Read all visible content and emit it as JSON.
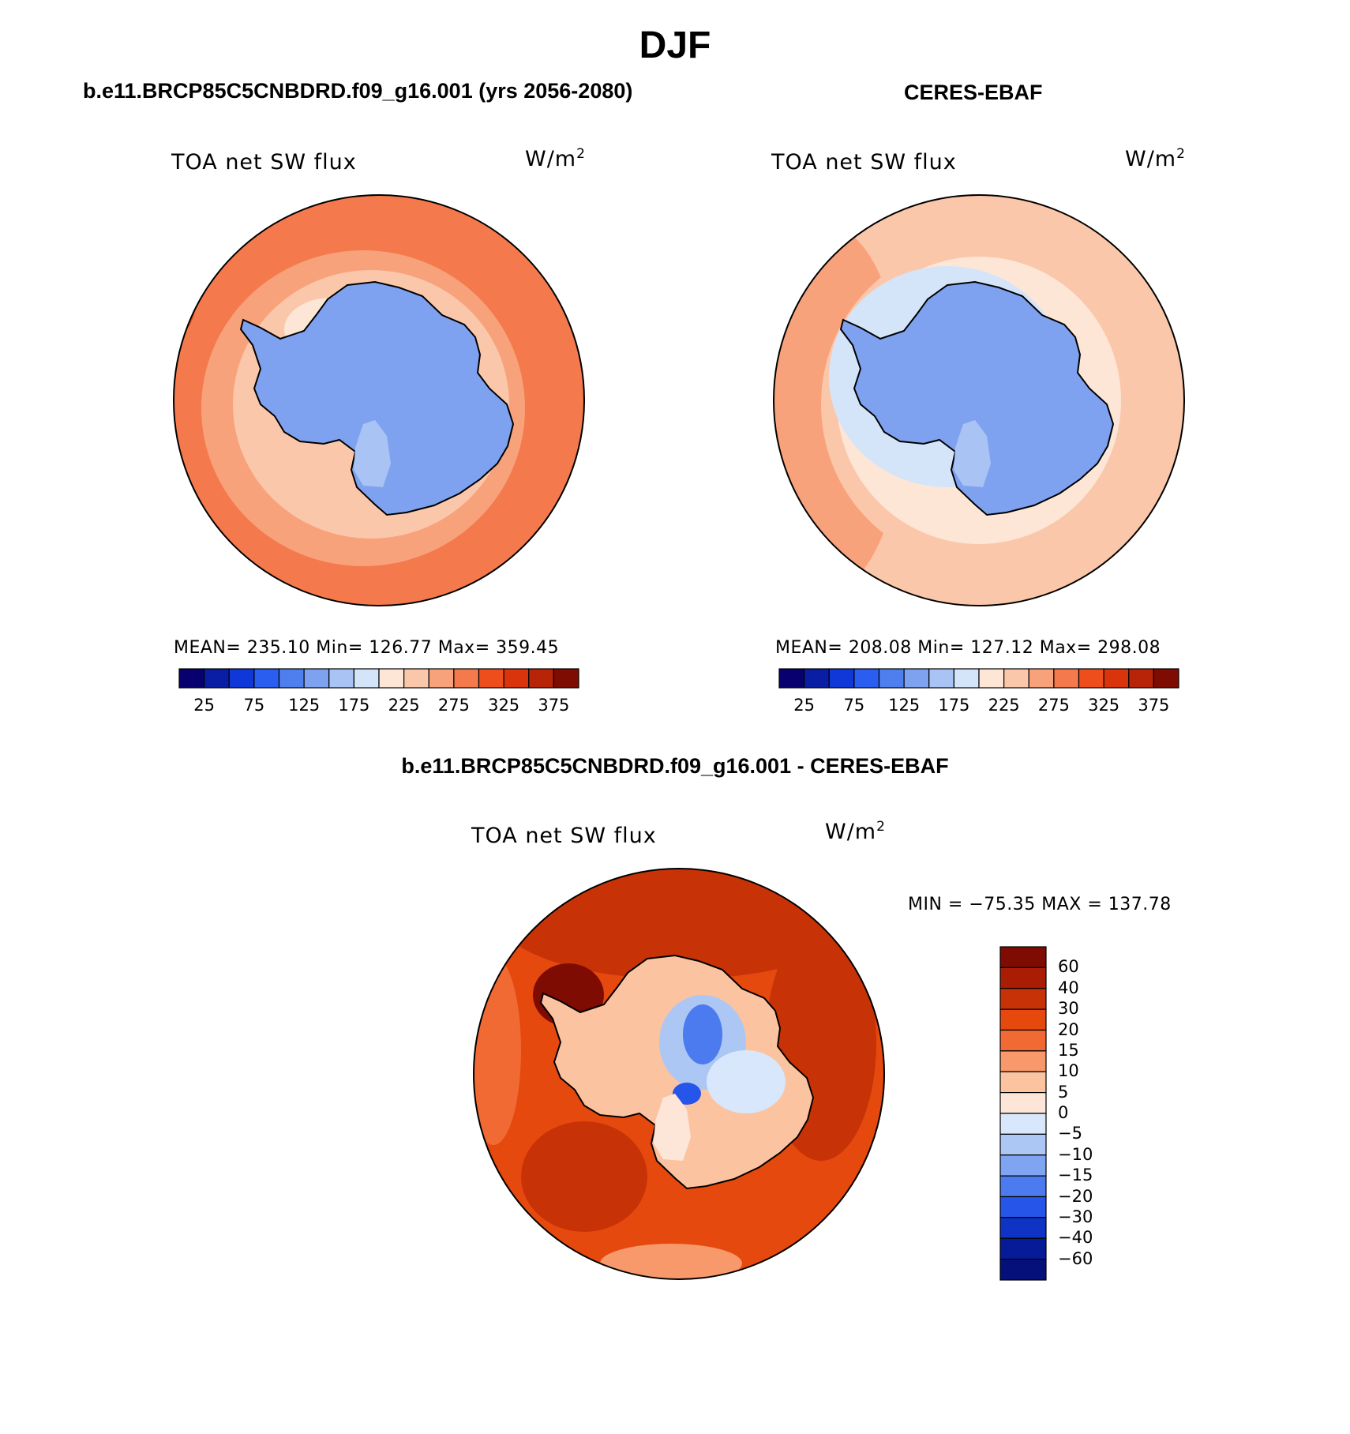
{
  "figure": {
    "title": "DJF"
  },
  "panels": [
    {
      "id": "model",
      "case_title": "b.e11.BRCP85C5CNBDRD.f09_g16.001 (yrs 2056-2080)",
      "field": "TOA net SW flux",
      "units": "W/m",
      "units_sup": "2",
      "stats": "MEAN= 235.10   Min= 126.77   Max= 359.45",
      "colorbar_ticks": [
        "25",
        "75",
        "125",
        "175",
        "225",
        "275",
        "325",
        "375"
      ],
      "dominant_ocean": "mid-high"
    },
    {
      "id": "obs",
      "case_title": "CERES-EBAF",
      "field": "TOA net SW flux",
      "units": "W/m",
      "units_sup": "2",
      "stats": "MEAN= 208.08   Min= 127.12   Max= 298.08",
      "colorbar_ticks": [
        "25",
        "75",
        "125",
        "175",
        "225",
        "275",
        "325",
        "375"
      ],
      "dominant_ocean": "mid"
    },
    {
      "id": "diff",
      "case_title": "b.e11.BRCP85C5CNBDRD.f09_g16.001 - CERES-EBAF",
      "field": "TOA net SW flux",
      "units": "W/m",
      "units_sup": "2",
      "minmax": "MIN = −75.35 MAX = 137.78",
      "colorbar_ticks": [
        "60",
        "40",
        "30",
        "20",
        "15",
        "10",
        "5",
        "0",
        "−5",
        "−10",
        "−15",
        "−20",
        "−30",
        "−40",
        "−60"
      ]
    }
  ],
  "colors": {
    "abs_scale": [
      "#08006f",
      "#0a1ea5",
      "#1038d8",
      "#2a5ef0",
      "#4f7fee",
      "#7ea2f0",
      "#aac3f5",
      "#d4e5fa",
      "#fde6d6",
      "#fbc7aa",
      "#f8a27c",
      "#f47a4d",
      "#ee4d1c",
      "#d9340c",
      "#b82408",
      "#7e0c02"
    ],
    "diff_scale": [
      "#7e0c02",
      "#a81d04",
      "#c83207",
      "#e5490e",
      "#f26a33",
      "#f7996a",
      "#fbc3a0",
      "#fde6d8",
      "#d8e7fb",
      "#adc7f5",
      "#7fa5f2",
      "#4c7bef",
      "#2656e9",
      "#0f33c4",
      "#061b98",
      "#05107a"
    ]
  }
}
